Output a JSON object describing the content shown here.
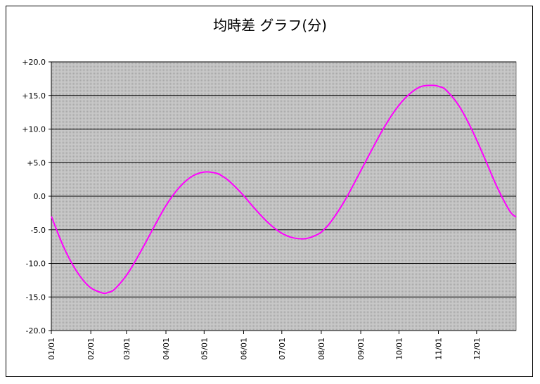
{
  "chart_data": {
    "type": "line",
    "title": "均時差 グラフ(分)",
    "xlabel": "",
    "ylabel": "",
    "ylim": [
      -20,
      20
    ],
    "y_ticks": [
      "+20.0",
      "+15.0",
      "+10.0",
      "+5.0",
      "0.0",
      "-5.0",
      "-10.0",
      "-15.0",
      "-20.0"
    ],
    "y_tick_values": [
      20,
      15,
      10,
      5,
      0,
      -5,
      -10,
      -15,
      -20
    ],
    "x_ticks": [
      "01/01",
      "02/01",
      "03/01",
      "04/01",
      "05/01",
      "06/01",
      "07/01",
      "08/01",
      "09/01",
      "10/01",
      "11/01",
      "12/01"
    ],
    "x_tick_days": [
      0,
      31,
      59,
      90,
      120,
      151,
      181,
      212,
      243,
      273,
      304,
      334
    ],
    "xlim_days": [
      0,
      365
    ],
    "grid": "horizontal",
    "series": [
      {
        "color": "#ff00ff",
        "x_days": [
          0,
          10,
          20,
          30,
          40,
          45,
          50,
          60,
          70,
          80,
          90,
          100,
          110,
          120,
          130,
          135,
          140,
          150,
          160,
          170,
          180,
          190,
          200,
          210,
          215,
          220,
          230,
          240,
          250,
          260,
          270,
          280,
          290,
          300,
          305,
          310,
          320,
          330,
          340,
          350,
          360,
          365
        ],
        "values": [
          -3.0,
          -7.7,
          -11.2,
          -13.5,
          -14.4,
          -14.3,
          -13.8,
          -11.5,
          -8.3,
          -4.8,
          -1.4,
          1.2,
          2.9,
          3.6,
          3.4,
          2.9,
          2.2,
          0.3,
          -1.9,
          -3.9,
          -5.4,
          -6.2,
          -6.3,
          -5.6,
          -4.8,
          -3.7,
          -0.8,
          2.7,
          6.3,
          9.8,
          12.8,
          15.0,
          16.3,
          16.5,
          16.3,
          15.8,
          13.5,
          10.0,
          5.8,
          1.4,
          -2.2,
          -3.1
        ]
      }
    ],
    "plot_background": "#c0c0c0",
    "line_color": "#ff00ff"
  }
}
